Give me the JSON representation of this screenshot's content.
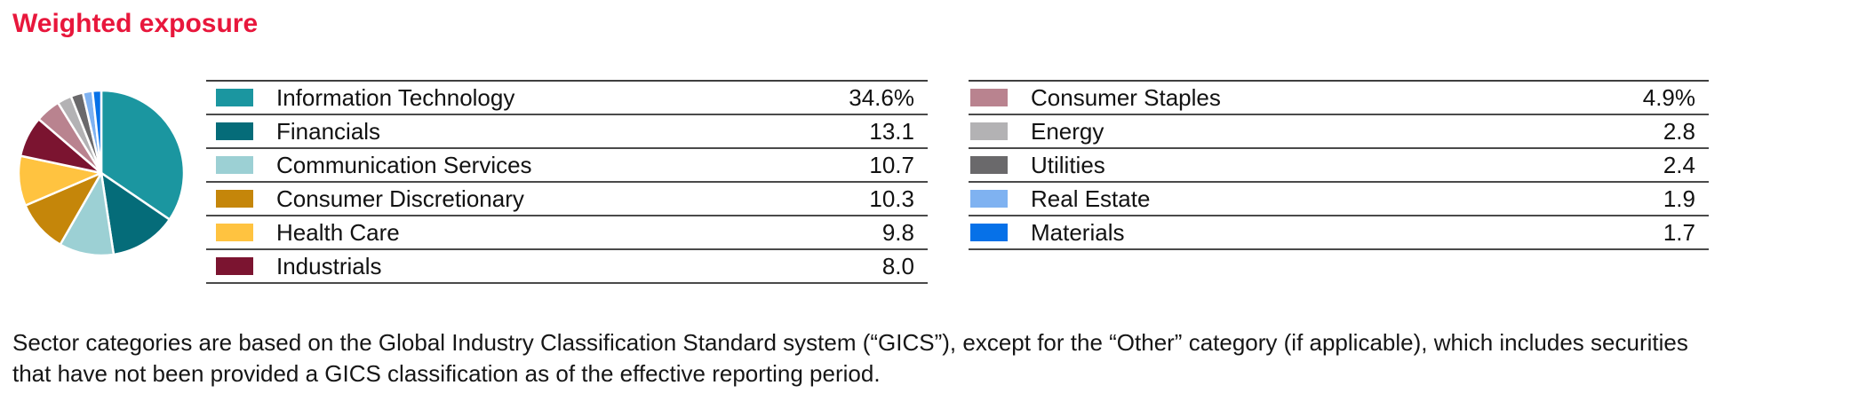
{
  "title": "Weighted exposure",
  "title_color": "#e8173c",
  "chart_data": {
    "type": "pie",
    "title": "Weighted exposure",
    "start_angle_deg": 0,
    "direction": "clockwise",
    "slice_gap_stroke": "#ffffff",
    "legend_position": "two-column table right of pie",
    "legend_split_index": 6,
    "series": [
      {
        "label": "Information Technology",
        "value": 34.6,
        "display": "34.6%",
        "color": "#1b96a0"
      },
      {
        "label": "Financials",
        "value": 13.1,
        "display": "13.1",
        "color": "#056c79"
      },
      {
        "label": "Communication Services",
        "value": 10.7,
        "display": "10.7",
        "color": "#9cd0d4"
      },
      {
        "label": "Consumer Discretionary",
        "value": 10.3,
        "display": "10.3",
        "color": "#c5860a"
      },
      {
        "label": "Health Care",
        "value": 9.8,
        "display": "9.8",
        "color": "#ffc340"
      },
      {
        "label": "Industrials",
        "value": 8.0,
        "display": "8.0",
        "color": "#7b1430"
      },
      {
        "label": "Consumer Staples",
        "value": 4.9,
        "display": "4.9%",
        "color": "#b9838f"
      },
      {
        "label": "Energy",
        "value": 2.8,
        "display": "2.8",
        "color": "#b3b2b4"
      },
      {
        "label": "Utilities",
        "value": 2.4,
        "display": "2.4",
        "color": "#6a696b"
      },
      {
        "label": "Real Estate",
        "value": 1.9,
        "display": "1.9",
        "color": "#7fb2f1"
      },
      {
        "label": "Materials",
        "value": 1.7,
        "display": "1.7",
        "color": "#0671e8"
      }
    ]
  },
  "footnote_lines": [
    "Sector categories are based on the Global Industry Classification Standard system (“GICS”), except for the “Other” category (if applicable), which includes securities",
    "that have not been provided a GICS classification as of the effective reporting period."
  ]
}
